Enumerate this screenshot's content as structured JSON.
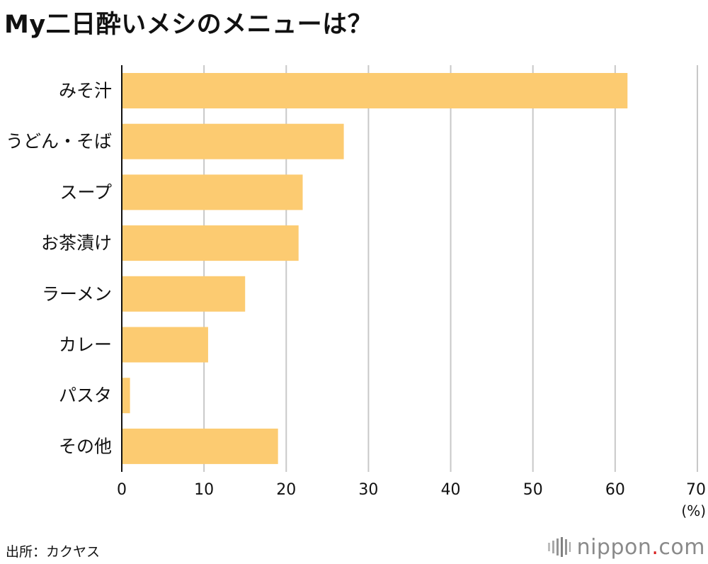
{
  "title": "My二日酔いメシのメニューは？",
  "source": "出所：カクヤス",
  "logo": {
    "name": "nippon",
    "dot": ".",
    "tld": "com",
    "icon": "sound-bars-icon"
  },
  "colors": {
    "bar": "#FCCB71",
    "grid": "#C8C8C8",
    "axis": "#111111",
    "logo_dot": "#d81e1e",
    "logo_text": "#8a8a8a"
  },
  "chart_data": {
    "type": "bar",
    "orientation": "horizontal",
    "categories": [
      "みそ汁",
      "うどん・そば",
      "スープ",
      "お茶漬け",
      "ラーメン",
      "カレー",
      "パスタ",
      "その他"
    ],
    "values": [
      61.5,
      27,
      22,
      21.5,
      15,
      10.5,
      1,
      19
    ],
    "xlim": [
      0,
      70
    ],
    "xticks": [
      0,
      10,
      20,
      30,
      40,
      50,
      60,
      70
    ],
    "unit_label": "(%)",
    "grid": true
  }
}
